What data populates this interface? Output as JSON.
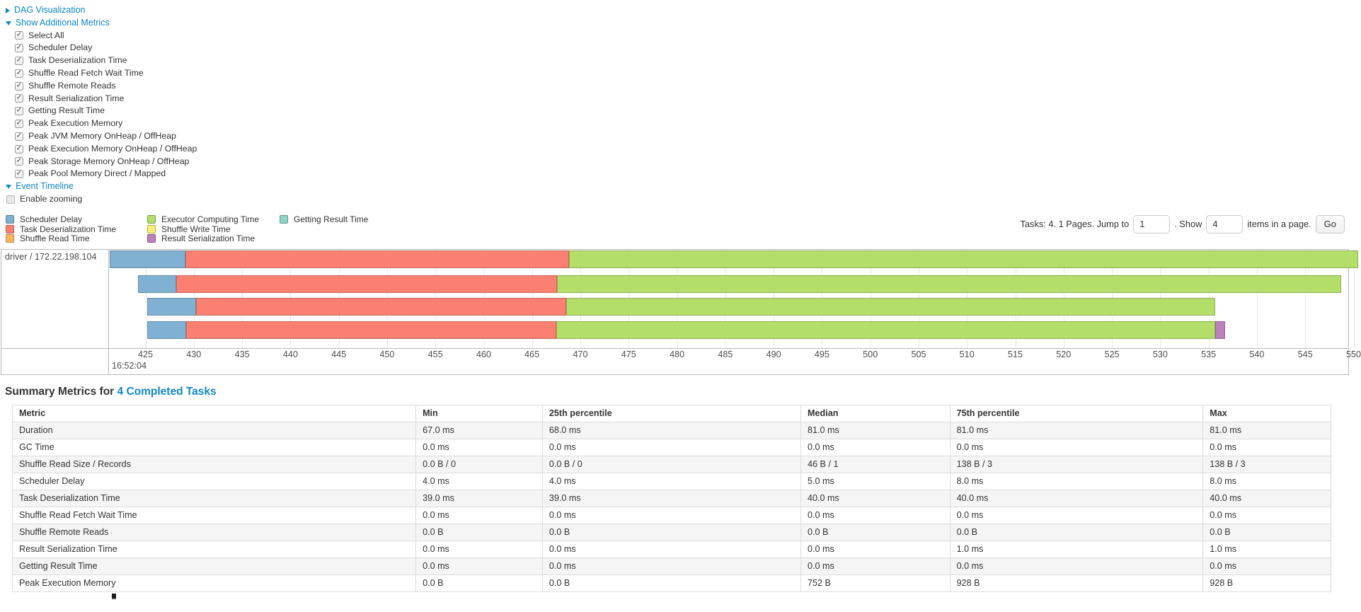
{
  "colors": {
    "link": "#0d87c6",
    "scheduler_delay": "#80B1D3",
    "task_deserialization": "#FB8072",
    "shuffle_read": "#FDB462",
    "executor_computing": "#B3DE69",
    "shuffle_write": "#FFED6F",
    "result_serialization": "#BC80BD",
    "getting_result": "#8DD3C7"
  },
  "toggles": {
    "dag": {
      "label": "DAG Visualization",
      "expanded": false
    },
    "metrics": {
      "label": "Show Additional Metrics",
      "expanded": true
    },
    "timeline": {
      "label": "Event Timeline",
      "expanded": true
    }
  },
  "metrics_checkboxes": [
    {
      "label": "Select All",
      "checked": true
    },
    {
      "label": "Scheduler Delay",
      "checked": true
    },
    {
      "label": "Task Deserialization Time",
      "checked": true
    },
    {
      "label": "Shuffle Read Fetch Wait Time",
      "checked": true
    },
    {
      "label": "Shuffle Remote Reads",
      "checked": true
    },
    {
      "label": "Result Serialization Time",
      "checked": true
    },
    {
      "label": "Getting Result Time",
      "checked": true
    },
    {
      "label": "Peak Execution Memory",
      "checked": true
    },
    {
      "label": "Peak JVM Memory OnHeap / OffHeap",
      "checked": true
    },
    {
      "label": "Peak Execution Memory OnHeap / OffHeap",
      "checked": true
    },
    {
      "label": "Peak Storage Memory OnHeap / OffHeap",
      "checked": true
    },
    {
      "label": "Peak Pool Memory Direct / Mapped",
      "checked": true
    }
  ],
  "enable_zooming": {
    "label": "Enable zooming",
    "checked": false
  },
  "legend": {
    "columns": [
      [
        {
          "label": "Scheduler Delay",
          "color_key": "scheduler_delay"
        },
        {
          "label": "Task Deserialization Time",
          "color_key": "task_deserialization"
        },
        {
          "label": "Shuffle Read Time",
          "color_key": "shuffle_read"
        }
      ],
      [
        {
          "label": "Executor Computing Time",
          "color_key": "executor_computing"
        },
        {
          "label": "Shuffle Write Time",
          "color_key": "shuffle_write"
        },
        {
          "label": "Result Serialization Time",
          "color_key": "result_serialization"
        }
      ],
      [
        {
          "label": "Getting Result Time",
          "color_key": "getting_result"
        }
      ]
    ]
  },
  "pagination": {
    "tasks_text": "Tasks: 4. 1 Pages. Jump to",
    "jump_value": "1",
    "show_label": ". Show",
    "show_value": "4",
    "items_label": "items in a page.",
    "go_label": "Go"
  },
  "chart_data": {
    "type": "timeline",
    "title": "Event Timeline",
    "group_label": "driver / 172.22.198.104",
    "x_axis": {
      "unit": "ms within second 16:52:04",
      "xlim": [
        421.3,
        549.6
      ],
      "ticks": [
        425,
        430,
        435,
        440,
        445,
        450,
        455,
        460,
        465,
        470,
        475,
        480,
        485,
        490,
        495,
        500,
        505,
        510,
        515,
        520,
        525,
        530,
        535,
        540,
        545,
        550
      ],
      "time_label": "16:52:04"
    },
    "legend_entries": [
      "Scheduler Delay",
      "Task Deserialization Time",
      "Shuffle Read Time",
      "Executor Computing Time",
      "Shuffle Write Time",
      "Result Serialization Time",
      "Getting Result Time"
    ],
    "tasks": [
      {
        "segments": [
          {
            "name": "scheduler_delay",
            "start": 421.3,
            "end": 429.1
          },
          {
            "name": "task_deserialization",
            "start": 429.1,
            "end": 468.8
          },
          {
            "name": "executor_computing",
            "start": 468.8,
            "end": 550.5
          }
        ]
      },
      {
        "segments": [
          {
            "name": "scheduler_delay",
            "start": 424.2,
            "end": 428.2
          },
          {
            "name": "task_deserialization",
            "start": 428.2,
            "end": 467.6
          },
          {
            "name": "executor_computing",
            "start": 467.6,
            "end": 548.7
          }
        ]
      },
      {
        "segments": [
          {
            "name": "scheduler_delay",
            "start": 425.2,
            "end": 430.2
          },
          {
            "name": "task_deserialization",
            "start": 430.2,
            "end": 468.5
          },
          {
            "name": "executor_computing",
            "start": 468.5,
            "end": 535.7
          }
        ]
      },
      {
        "segments": [
          {
            "name": "scheduler_delay",
            "start": 425.2,
            "end": 429.2
          },
          {
            "name": "task_deserialization",
            "start": 429.2,
            "end": 467.5
          },
          {
            "name": "executor_computing",
            "start": 467.5,
            "end": 535.7
          },
          {
            "name": "result_serialization",
            "start": 535.7,
            "end": 536.7
          }
        ]
      }
    ]
  },
  "summary": {
    "title_prefix": "Summary Metrics for",
    "title_link": "4 Completed Tasks",
    "table": {
      "headers": [
        "Metric",
        "Min",
        "25th percentile",
        "Median",
        "75th percentile",
        "Max"
      ],
      "rows": [
        [
          "Duration",
          "67.0 ms",
          "68.0 ms",
          "81.0 ms",
          "81.0 ms",
          "81.0 ms"
        ],
        [
          "GC Time",
          "0.0 ms",
          "0.0 ms",
          "0.0 ms",
          "0.0 ms",
          "0.0 ms"
        ],
        [
          "Shuffle Read Size / Records",
          "0.0 B / 0",
          "0.0 B / 0",
          "46 B / 1",
          "138 B / 3",
          "138 B / 3"
        ],
        [
          "Scheduler Delay",
          "4.0 ms",
          "4.0 ms",
          "5.0 ms",
          "8.0 ms",
          "8.0 ms"
        ],
        [
          "Task Deserialization Time",
          "39.0 ms",
          "39.0 ms",
          "40.0 ms",
          "40.0 ms",
          "40.0 ms"
        ],
        [
          "Shuffle Read Fetch Wait Time",
          "0.0 ms",
          "0.0 ms",
          "0.0 ms",
          "0.0 ms",
          "0.0 ms"
        ],
        [
          "Shuffle Remote Reads",
          "0.0 B",
          "0.0 B",
          "0.0 B",
          "0.0 B",
          "0.0 B"
        ],
        [
          "Result Serialization Time",
          "0.0 ms",
          "0.0 ms",
          "0.0 ms",
          "1.0 ms",
          "1.0 ms"
        ],
        [
          "Getting Result Time",
          "0.0 ms",
          "0.0 ms",
          "0.0 ms",
          "0.0 ms",
          "0.0 ms"
        ],
        [
          "Peak Execution Memory",
          "0.0 B",
          "0.0 B",
          "752 B",
          "928 B",
          "928 B"
        ]
      ]
    }
  }
}
